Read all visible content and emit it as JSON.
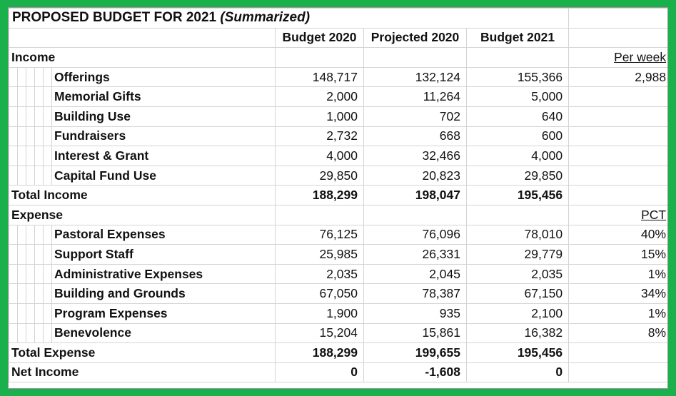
{
  "title_main": "PROPOSED BUDGET FOR 2021",
  "title_sub": "(Summarized)",
  "columns": [
    "Budget 2020",
    "Projected 2020",
    "Budget 2021"
  ],
  "income": {
    "label": "Income",
    "extra_header": "Per week",
    "rows": [
      {
        "name": "Offerings",
        "b2020": "148,717",
        "p2020": "132,124",
        "b2021": "155,366",
        "extra": "2,988"
      },
      {
        "name": "Memorial Gifts",
        "b2020": "2,000",
        "p2020": "11,264",
        "b2021": "5,000",
        "extra": ""
      },
      {
        "name": "Building Use",
        "b2020": "1,000",
        "p2020": "702",
        "b2021": "640",
        "extra": ""
      },
      {
        "name": "Fundraisers",
        "b2020": "2,732",
        "p2020": "668",
        "b2021": "600",
        "extra": ""
      },
      {
        "name": "Interest & Grant",
        "b2020": "4,000",
        "p2020": "32,466",
        "b2021": "4,000",
        "extra": ""
      },
      {
        "name": "Capital Fund Use",
        "b2020": "29,850",
        "p2020": "20,823",
        "b2021": "29,850",
        "extra": ""
      }
    ],
    "total": {
      "name": "Total Income",
      "b2020": "188,299",
      "p2020": "198,047",
      "b2021": "195,456"
    }
  },
  "expense": {
    "label": "Expense",
    "extra_header": "PCT",
    "rows": [
      {
        "name": "Pastoral Expenses",
        "b2020": "76,125",
        "p2020": "76,096",
        "b2021": "78,010",
        "extra": "40%"
      },
      {
        "name": "Support Staff",
        "b2020": "25,985",
        "p2020": "26,331",
        "b2021": "29,779",
        "extra": "15%"
      },
      {
        "name": "Administrative Expenses",
        "b2020": "2,035",
        "p2020": "2,045",
        "b2021": "2,035",
        "extra": "1%"
      },
      {
        "name": "Building and Grounds",
        "b2020": "67,050",
        "p2020": "78,387",
        "b2021": "67,150",
        "extra": "34%"
      },
      {
        "name": "Program Expenses",
        "b2020": "1,900",
        "p2020": "935",
        "b2021": "2,100",
        "extra": "1%"
      },
      {
        "name": "Benevolence",
        "b2020": "15,204",
        "p2020": "15,861",
        "b2021": "16,382",
        "extra": "8%"
      }
    ],
    "total": {
      "name": "Total Expense",
      "b2020": "188,299",
      "p2020": "199,655",
      "b2021": "195,456"
    }
  },
  "net": {
    "name": "Net Income",
    "b2020": "0",
    "p2020": "-1,608",
    "b2021": "0"
  },
  "colors": {
    "frame": "#1ab14c",
    "grid": "#d4d4d4"
  }
}
